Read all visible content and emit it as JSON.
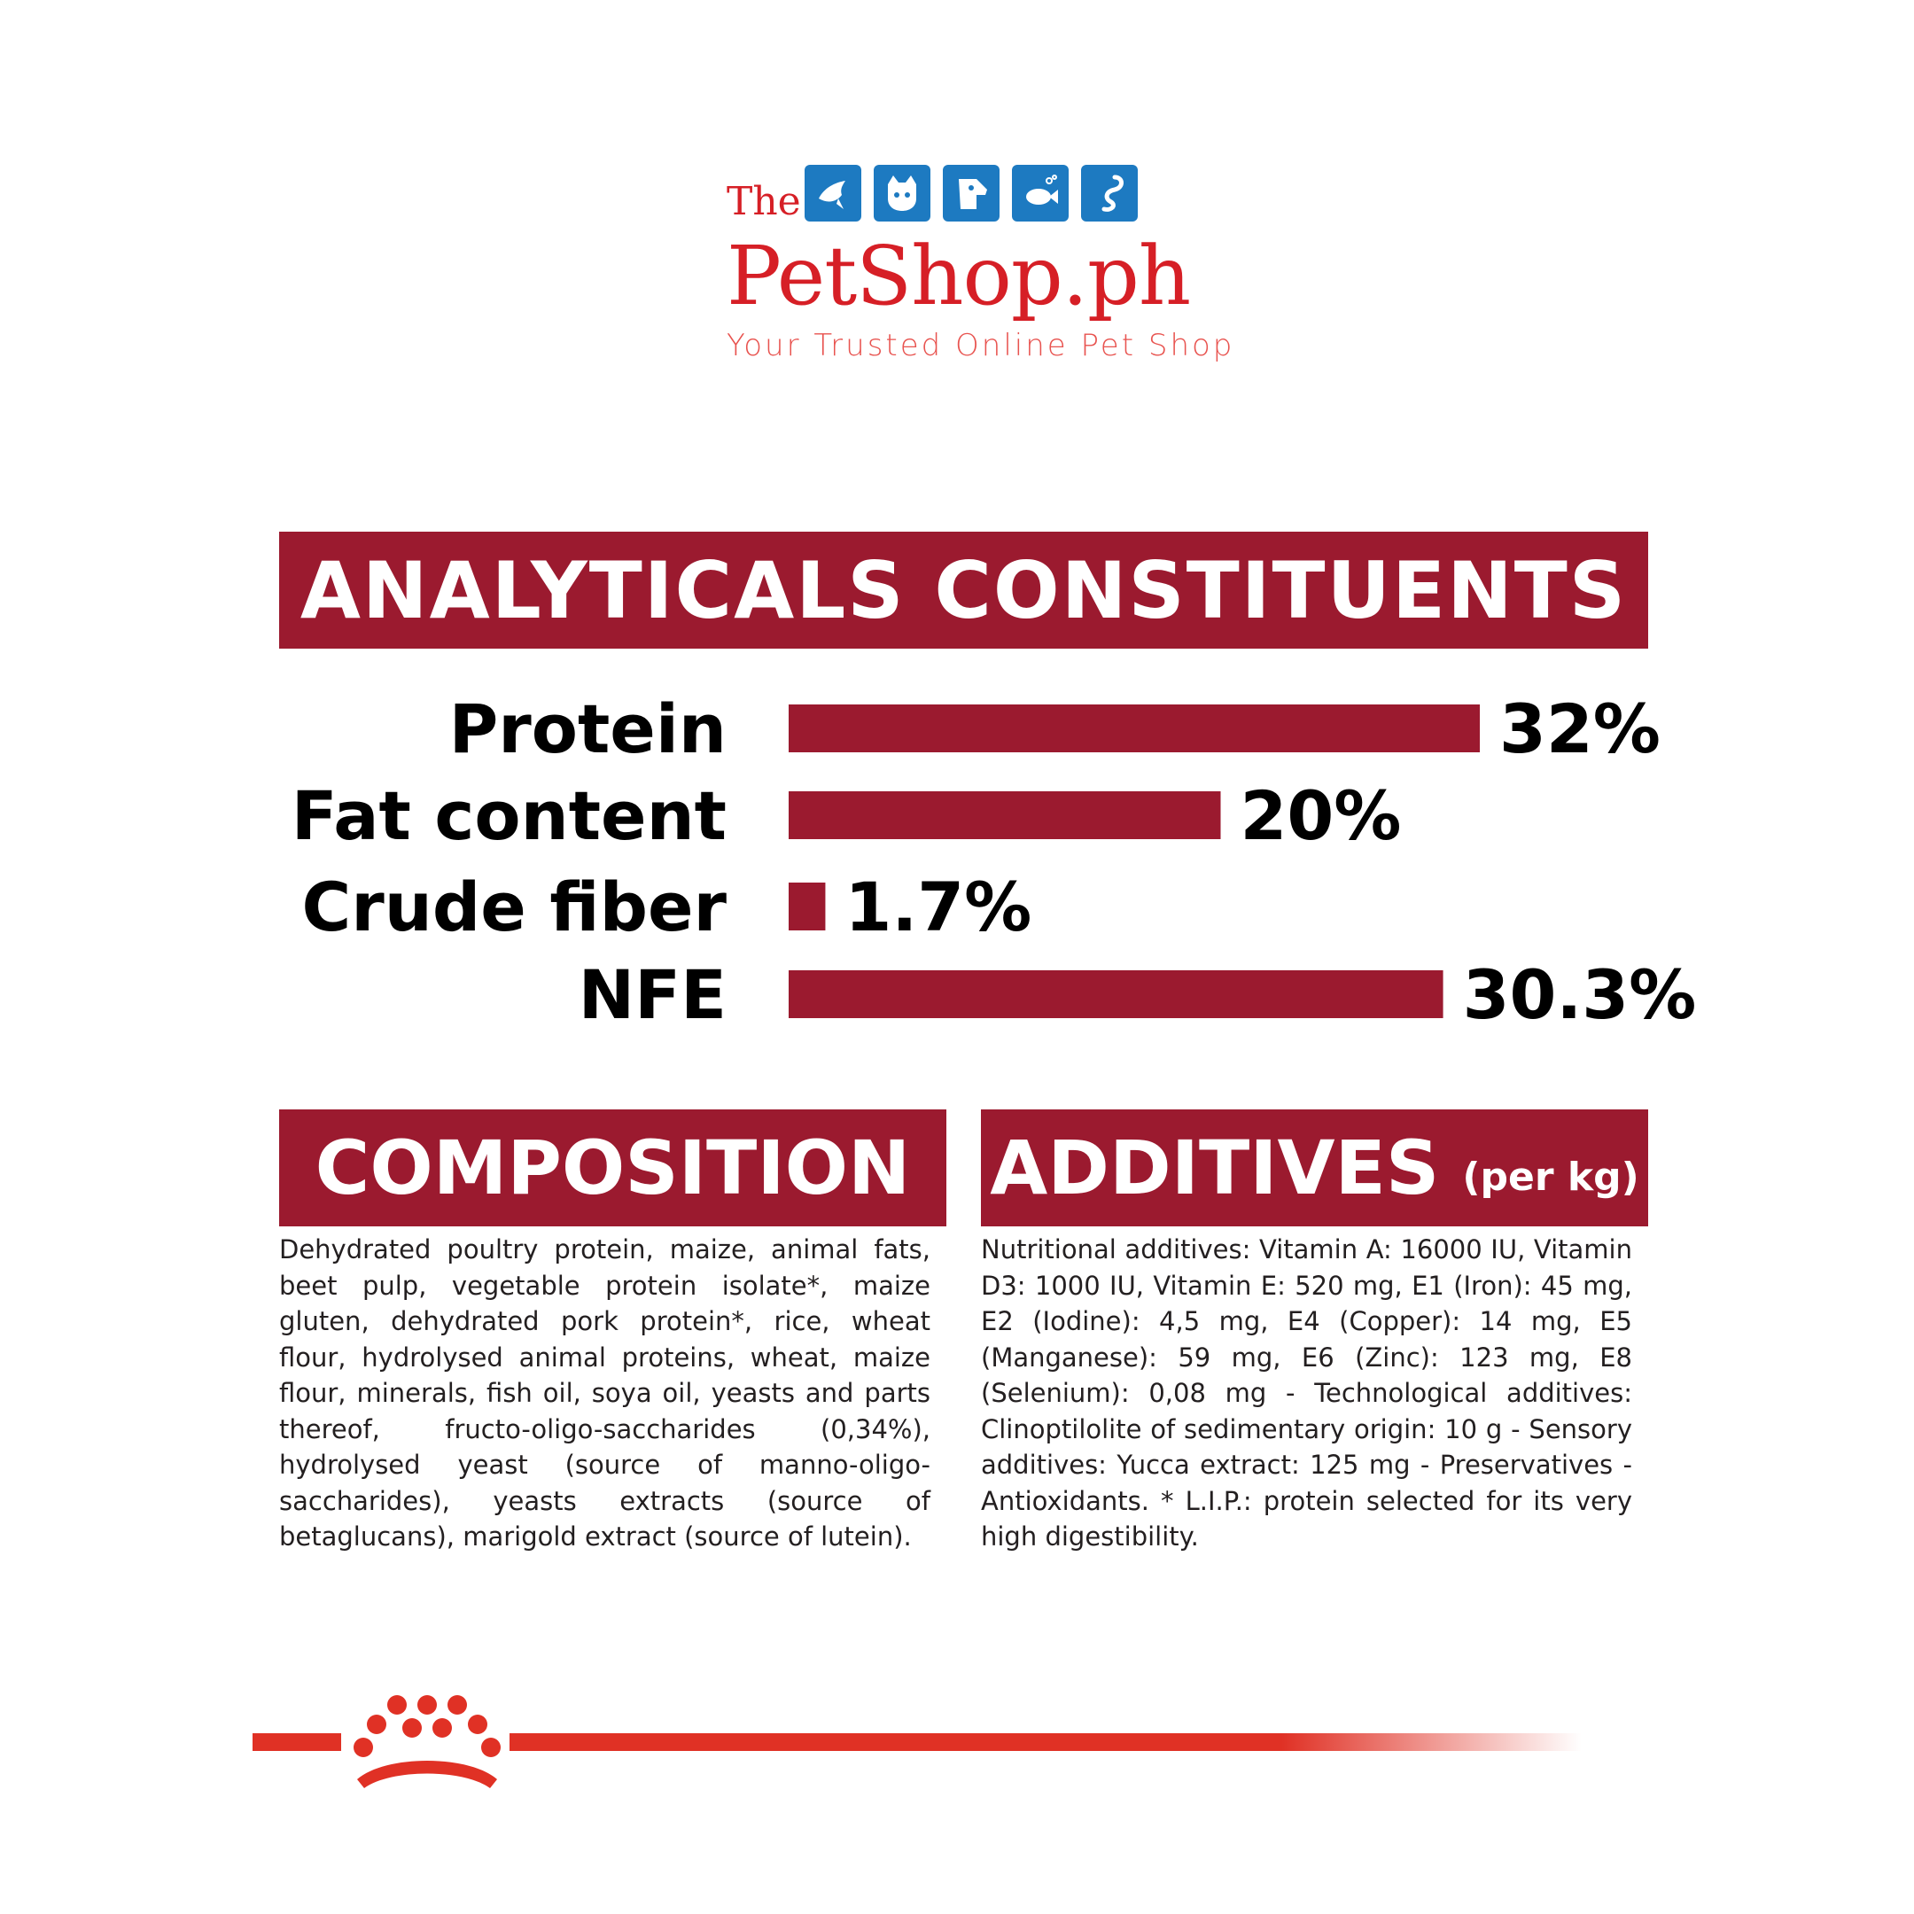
{
  "logo": {
    "the": "The",
    "name": "PetShop.ph",
    "tagline": "Your Trusted Online Pet Shop",
    "icons": [
      "bird-icon",
      "cat-icon",
      "dog-icon",
      "fish-icon",
      "snake-icon"
    ],
    "icon_color": "#1d7ac1",
    "text_color": "#d61f26"
  },
  "analytics": {
    "heading": "ANALYTICALS CONSTITUENTS"
  },
  "chart_data": {
    "type": "bar",
    "orientation": "horizontal",
    "categories": [
      "Protein",
      "Fat content",
      "Crude fiber",
      "NFE"
    ],
    "values": [
      32,
      20,
      1.7,
      30.3
    ],
    "data_labels": [
      "32%",
      "20%",
      "1.7%",
      "30.3%"
    ],
    "bar_color": "#9b1a2f",
    "grid": false,
    "xlim": [
      0,
      32
    ]
  },
  "composition": {
    "heading": "COMPOSITION",
    "text": "Dehydrated poultry protein, maize, animal fats, beet pulp, vegetable protein isolate*, maize gluten, dehydrated pork protein*, rice, wheat flour, hydrolysed animal proteins, wheat, maize flour, minerals, fish oil, soya oil, yeasts and parts thereof, fructo-oligo-saccharides (0,34%), hydrolysed yeast (source of manno-oligo-saccharides), yeasts extracts (source of betaglucans), marigold extract (source of lutein)."
  },
  "additives": {
    "heading": "ADDITIVES",
    "heading_suffix": "(per kg)",
    "text": "Nutritional additives: Vitamin A: 16000 IU, Vitamin D3: 1000 IU, Vitamin E: 520 mg, E1 (Iron): 45 mg, E2 (Iodine): 4,5 mg, E4 (Copper): 14 mg, E5 (Manganese): 59 mg, E6 (Zinc): 123 mg, E8 (Selenium): 0,08 mg - Technological additives: Clinoptilolite of sedimentary origin: 10 g - Sensory additives: Yucca extract: 125 mg - Preservatives - Antioxidants. * L.I.P.: protein selected for its very high digestibility."
  },
  "footer": {
    "icon": "crown-icon",
    "color": "#e03125"
  }
}
